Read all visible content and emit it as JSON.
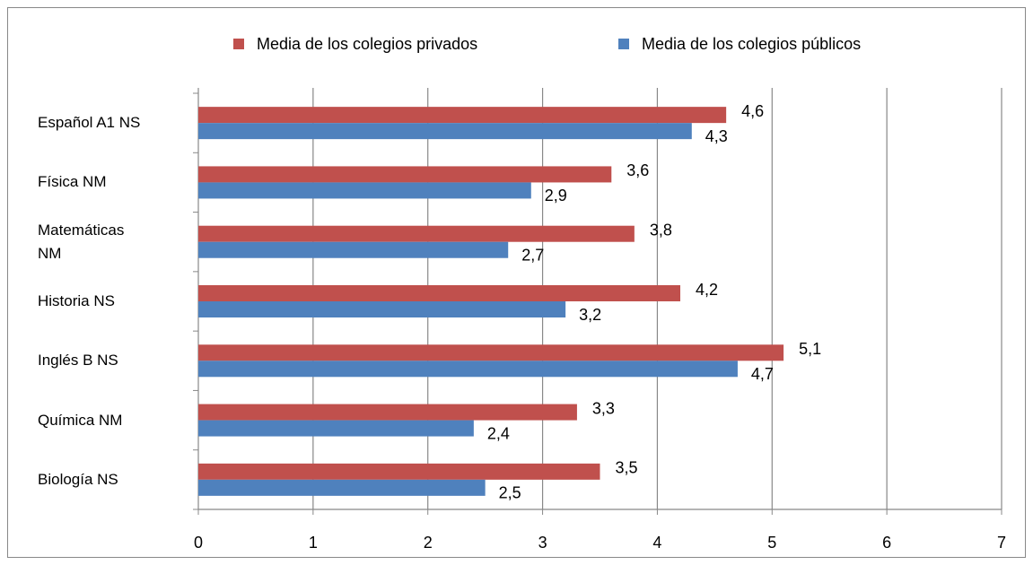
{
  "chart_data": {
    "type": "bar",
    "orientation": "horizontal",
    "categories": [
      "Español A1 NS",
      "Física NM",
      "Matemáticas NM",
      "Historia NS",
      "Inglés B NS",
      "Química NM",
      "Biología NS"
    ],
    "series": [
      {
        "name": "Media de los colegios privados",
        "color": "#c0504d",
        "values": [
          4.6,
          3.6,
          3.8,
          4.2,
          5.1,
          3.3,
          3.5
        ],
        "value_labels": [
          "4,6",
          "3,6",
          "3,8",
          "4,2",
          "5,1",
          "3,3",
          "3,5"
        ]
      },
      {
        "name": "Media de los colegios públicos",
        "color": "#4f81bd",
        "values": [
          4.3,
          2.9,
          2.7,
          3.2,
          4.7,
          2.4,
          2.5
        ],
        "value_labels": [
          "4,3",
          "2,9",
          "2,7",
          "3,2",
          "4,7",
          "2,4",
          "2,5"
        ]
      }
    ],
    "xlim": [
      0,
      7
    ],
    "xticks": [
      0,
      1,
      2,
      3,
      4,
      5,
      6,
      7
    ],
    "grid": true,
    "legend": "top"
  }
}
